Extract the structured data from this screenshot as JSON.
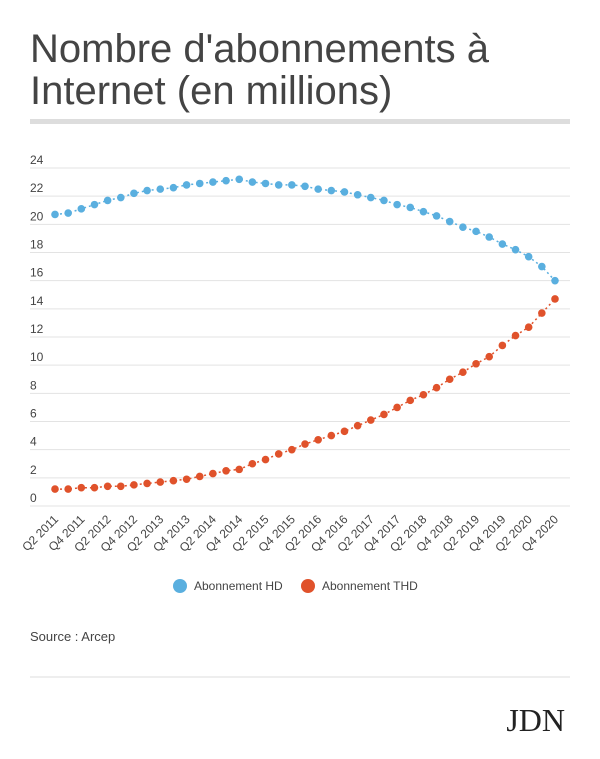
{
  "chart_data": {
    "type": "line",
    "title": "Nombre d'abonnements à",
    "title_line2": "Internet (en millions)",
    "categories": [
      "Q2 2011",
      null,
      "Q4 2011",
      null,
      "Q2 2012",
      null,
      "Q4 2012",
      null,
      "Q2 2013",
      null,
      "Q4 2013",
      null,
      "Q2 2014",
      null,
      "Q4 2014",
      null,
      "Q2 2015",
      null,
      "Q4 2015",
      null,
      "Q2 2016",
      null,
      "Q4 2016",
      null,
      "Q2 2017",
      null,
      "Q4 2017",
      null,
      "Q2 2018",
      null,
      "Q4 2018",
      null,
      "Q2 2019",
      null,
      "Q4 2019",
      null,
      "Q2 2020",
      null,
      "Q4 2020"
    ],
    "series": [
      {
        "name": "Abonnement HD",
        "color": "#5aafdf",
        "values": [
          20.7,
          20.8,
          21.1,
          21.4,
          21.7,
          21.9,
          22.2,
          22.4,
          22.5,
          22.6,
          22.8,
          22.9,
          23.0,
          23.1,
          23.2,
          23.0,
          22.9,
          22.8,
          22.8,
          22.7,
          22.5,
          22.4,
          22.3,
          22.1,
          21.9,
          21.7,
          21.4,
          21.2,
          20.9,
          20.6,
          20.2,
          19.8,
          19.5,
          19.1,
          18.6,
          18.2,
          17.7,
          17.0,
          16.0
        ]
      },
      {
        "name": "Abonnement THD",
        "color": "#e0522b",
        "values": [
          1.2,
          1.2,
          1.3,
          1.3,
          1.4,
          1.4,
          1.5,
          1.6,
          1.7,
          1.8,
          1.9,
          2.1,
          2.3,
          2.5,
          2.6,
          3.0,
          3.3,
          3.7,
          4.0,
          4.4,
          4.7,
          5.0,
          5.3,
          5.7,
          6.1,
          6.5,
          7.0,
          7.5,
          7.9,
          8.4,
          9.0,
          9.5,
          10.1,
          10.6,
          11.4,
          12.1,
          12.7,
          13.7,
          14.7
        ]
      }
    ],
    "ylim": [
      0,
      24
    ],
    "yticks": [
      0,
      2,
      4,
      6,
      8,
      10,
      12,
      14,
      16,
      18,
      20,
      22,
      24
    ],
    "grid": true,
    "legend": "bottom",
    "source": "Source : Arcep",
    "logo": "JDN"
  }
}
